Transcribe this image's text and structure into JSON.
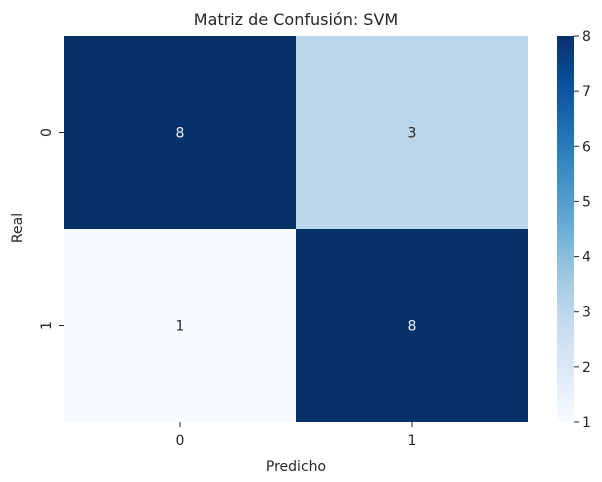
{
  "chart_data": {
    "type": "heatmap",
    "title": "Matriz de Confusión: SVM",
    "xlabel": "Predicho",
    "ylabel": "Real",
    "x_categories": [
      "0",
      "1"
    ],
    "y_categories": [
      "0",
      "1"
    ],
    "values": [
      [
        8,
        3
      ],
      [
        1,
        8
      ]
    ],
    "colormap": "Blues",
    "colorbar": {
      "min": 1,
      "max": 8,
      "ticks": [
        "1",
        "2",
        "3",
        "4",
        "5",
        "6",
        "7",
        "8"
      ]
    },
    "colors": {
      "low": "#f7fbff",
      "high": "#08306b",
      "light_text": "#f0f0f0",
      "dark_text": "#262626"
    }
  }
}
